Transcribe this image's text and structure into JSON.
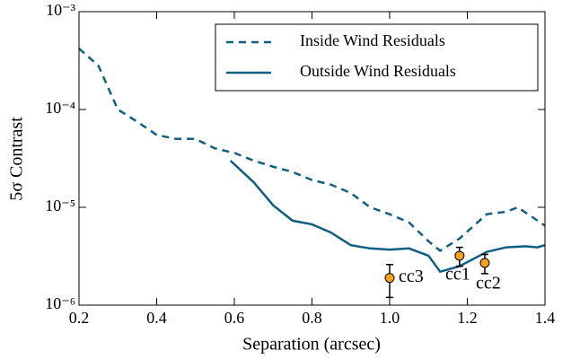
{
  "chart_data": {
    "type": "line",
    "xlabel": "Separation (arcsec)",
    "ylabel": "5σ Contrast",
    "xlim": [
      0.2,
      1.4
    ],
    "xticks": [
      0.2,
      0.4,
      0.6,
      0.8,
      {
        "value": 1,
        "label": "1.0"
      },
      1.2,
      1.4
    ],
    "ylim": [
      1e-06,
      0.001
    ],
    "yscale": "log",
    "yticks": [
      {
        "value": 1e-06,
        "label": "10⁻⁶"
      },
      {
        "value": 1e-05,
        "label": "10⁻⁵"
      },
      {
        "value": 0.0001,
        "label": "10⁻⁴"
      },
      {
        "value": 0.001,
        "label": "10⁻³"
      }
    ],
    "legend": "upper right",
    "series": [
      {
        "name": "Inside Wind Residuals",
        "color": "#0f5f82",
        "dash": true,
        "x": [
          0.2,
          0.25,
          0.3,
          0.35,
          0.4,
          0.45,
          0.5,
          0.55,
          0.6,
          0.65,
          0.7,
          0.75,
          0.8,
          0.85,
          0.9,
          0.95,
          1.0,
          1.05,
          1.1,
          1.13,
          1.18,
          1.25,
          1.3,
          1.33,
          1.4
        ],
        "values": [
          0.00042,
          0.00028,
          0.0001,
          7.5e-05,
          5.5e-05,
          5e-05,
          5e-05,
          4e-05,
          3.6e-05,
          3e-05,
          2.6e-05,
          2.3e-05,
          1.9e-05,
          1.7e-05,
          1.4e-05,
          1e-05,
          8.5e-06,
          7e-06,
          4.5e-06,
          3.6e-06,
          4.8e-06,
          8.5e-06,
          9e-06,
          1e-05,
          6.5e-06
        ]
      },
      {
        "name": "Outside Wind Residuals",
        "color": "#0f5f82",
        "dash": false,
        "x": [
          0.59,
          0.65,
          0.7,
          0.75,
          0.8,
          0.85,
          0.9,
          0.95,
          1.0,
          1.05,
          1.1,
          1.13,
          1.18,
          1.25,
          1.3,
          1.35,
          1.38,
          1.4
        ],
        "values": [
          3e-05,
          1.8e-05,
          1.05e-05,
          7.3e-06,
          6.7e-06,
          5.5e-06,
          4.1e-06,
          3.8e-06,
          3.7e-06,
          3.8e-06,
          3.2e-06,
          2.2e-06,
          2.5e-06,
          3.5e-06,
          3.9e-06,
          4e-06,
          3.9e-06,
          4.1e-06
        ]
      }
    ],
    "points_color": "#f7a21b",
    "points": [
      {
        "label": "cc3",
        "x": 1.0,
        "y": 1.9e-06,
        "err": 7e-07
      },
      {
        "label": "cc1",
        "x": 1.18,
        "y": 3.2e-06,
        "err": 7e-07
      },
      {
        "label": "cc2",
        "x": 1.245,
        "y": 2.7e-06,
        "err": 6e-07
      }
    ]
  }
}
